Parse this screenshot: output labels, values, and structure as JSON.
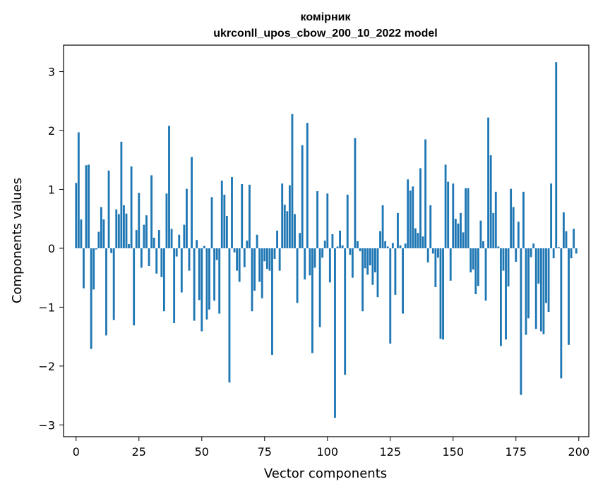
{
  "chart_data": {
    "type": "bar",
    "title": "комірник",
    "subtitle": "ukrconll_upos_cbow_200_10_2022 model",
    "xlabel": "Vector components",
    "ylabel": "Components values",
    "xlim": [
      -5,
      204
    ],
    "ylim": [
      -3.2,
      3.45
    ],
    "xticks": [
      0,
      25,
      50,
      75,
      100,
      125,
      150,
      175,
      200
    ],
    "yticks": [
      -3,
      -2,
      -1,
      0,
      1,
      2,
      3
    ],
    "xtick_labels": [
      "0",
      "25",
      "50",
      "75",
      "100",
      "125",
      "150",
      "175",
      "200"
    ],
    "ytick_labels": [
      "−3",
      "−2",
      "−1",
      "0",
      "1",
      "2",
      "3"
    ],
    "grid": false,
    "bar_color": "#1f77b4",
    "values": [
      1.11,
      1.97,
      0.49,
      -0.68,
      1.41,
      1.42,
      -1.71,
      -0.7,
      -0.02,
      0.28,
      0.7,
      0.49,
      -1.48,
      1.32,
      -0.08,
      -1.22,
      0.66,
      0.58,
      1.81,
      0.73,
      0.59,
      0.07,
      1.39,
      -1.31,
      0.31,
      0.94,
      -0.33,
      0.4,
      0.56,
      -0.3,
      1.24,
      0.18,
      -0.43,
      0.31,
      -0.49,
      -1.07,
      0.93,
      2.08,
      0.33,
      -1.27,
      -0.14,
      0.23,
      -0.75,
      0.4,
      1.01,
      -0.38,
      1.55,
      -1.23,
      0.14,
      -0.88,
      -1.41,
      0.04,
      -1.21,
      -1.04,
      0.87,
      -0.89,
      -0.2,
      -1.11,
      1.15,
      0.91,
      0.55,
      -2.28,
      1.21,
      -0.07,
      -0.38,
      -0.57,
      1.09,
      -0.32,
      0.13,
      1.08,
      -1.07,
      -0.72,
      0.23,
      -0.57,
      -0.85,
      -0.22,
      -0.35,
      -0.38,
      -1.81,
      -0.18,
      0.3,
      -0.38,
      1.1,
      0.74,
      0.63,
      1.07,
      2.28,
      0.58,
      -0.93,
      0.26,
      1.75,
      -0.53,
      2.13,
      -0.46,
      -1.78,
      -0.33,
      0.97,
      -1.34,
      -0.16,
      0.13,
      0.93,
      -0.58,
      0.24,
      -2.88,
      0.03,
      0.3,
      0.05,
      -2.15,
      0.91,
      -0.11,
      -0.5,
      1.87,
      0.12,
      -0.05,
      -1.07,
      -0.34,
      -0.45,
      -0.29,
      -0.62,
      -0.41,
      -0.83,
      0.29,
      0.73,
      0.12,
      0.03,
      -1.62,
      0.09,
      -0.79,
      0.6,
      0.05,
      -1.11,
      0.08,
      1.17,
      0.98,
      1.05,
      0.34,
      0.26,
      1.36,
      0.2,
      1.85,
      -0.24,
      0.73,
      -0.09,
      -0.66,
      -0.16,
      -1.54,
      -1.55,
      1.42,
      1.13,
      -0.55,
      1.1,
      0.5,
      0.42,
      0.6,
      0.27,
      1.02,
      1.02,
      -0.41,
      -0.36,
      -0.78,
      -0.64,
      0.47,
      0.12,
      -0.89,
      2.22,
      1.58,
      0.6,
      0.96,
      0.03,
      -1.66,
      -0.38,
      -1.55,
      -0.65,
      1.01,
      0.7,
      -0.23,
      0.45,
      -2.49,
      0.96,
      -1.47,
      -1.19,
      -0.15,
      0.08,
      -1.37,
      -0.6,
      -1.41,
      -1.46,
      -0.93,
      -1.08,
      1.1,
      -0.17,
      3.16,
      0.02,
      -2.21,
      0.61,
      0.29,
      -1.64,
      -0.17,
      0.33,
      -0.09
    ]
  }
}
